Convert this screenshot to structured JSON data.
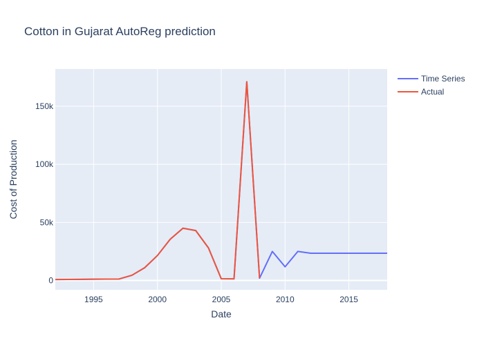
{
  "chart_data": {
    "type": "line",
    "title": "Cotton in Gujarat AutoReg prediction",
    "xlabel": "Date",
    "ylabel": "Cost of Production",
    "xlim": [
      1992,
      2018
    ],
    "ylim": [
      -8000,
      182000
    ],
    "x_ticks": [
      {
        "value": 1995,
        "label": "1995"
      },
      {
        "value": 2000,
        "label": "2000"
      },
      {
        "value": 2005,
        "label": "2005"
      },
      {
        "value": 2010,
        "label": "2010"
      },
      {
        "value": 2015,
        "label": "2015"
      }
    ],
    "y_ticks": [
      {
        "value": 0,
        "label": "0"
      },
      {
        "value": 50000,
        "label": "50k"
      },
      {
        "value": 100000,
        "label": "100k"
      },
      {
        "value": 150000,
        "label": "150k"
      }
    ],
    "grid": true,
    "legend_position": "top-right",
    "background_color": "#e5ecf6",
    "series": [
      {
        "name": "Time Series",
        "color": "#636efa",
        "x": [
          1992,
          1993,
          1994,
          1995,
          1996,
          1997,
          1998,
          1999,
          2000,
          2001,
          2002,
          2003,
          2004,
          2005,
          2006,
          2007,
          2008,
          2009,
          2010,
          2011,
          2012,
          2013,
          2014,
          2015,
          2016,
          2017,
          2018
        ],
        "y": [
          800,
          900,
          1000,
          1100,
          1200,
          1300,
          4500,
          11000,
          21500,
          35500,
          45000,
          43000,
          28000,
          1500,
          1400,
          171000,
          2000,
          25000,
          11800,
          25000,
          23500,
          23500,
          23500,
          23500,
          23500,
          23500,
          23500
        ]
      },
      {
        "name": "Actual",
        "color": "#ef553b",
        "x": [
          1992,
          1993,
          1994,
          1995,
          1996,
          1997,
          1998,
          1999,
          2000,
          2001,
          2002,
          2003,
          2004,
          2005,
          2006,
          2007,
          2008
        ],
        "y": [
          800,
          900,
          1000,
          1100,
          1200,
          1300,
          4500,
          11000,
          21500,
          35500,
          45000,
          43000,
          28000,
          1500,
          1400,
          171000,
          2000
        ]
      }
    ]
  }
}
